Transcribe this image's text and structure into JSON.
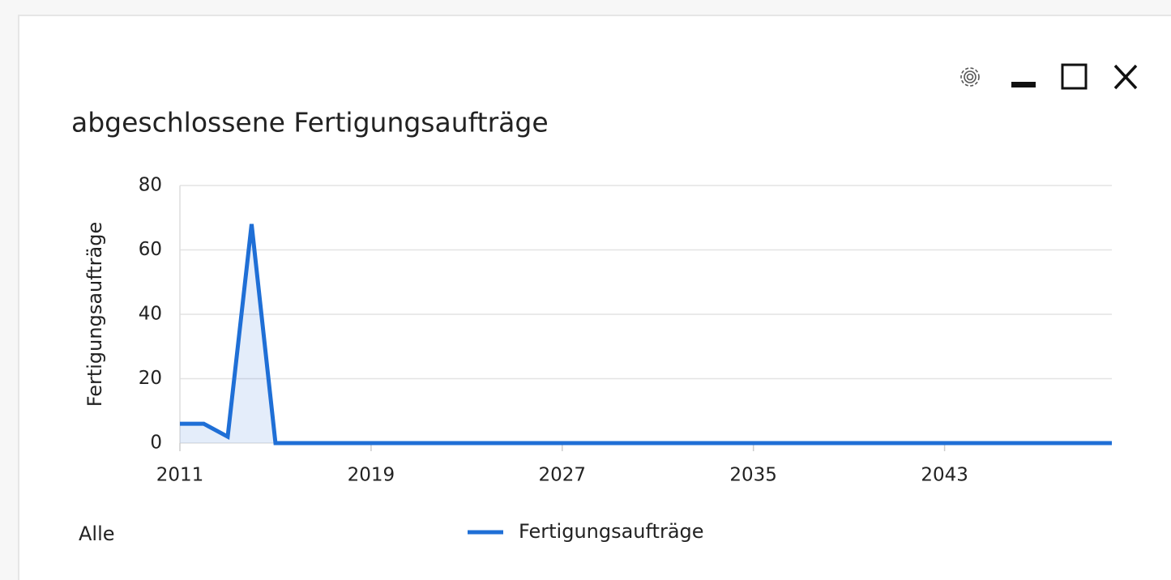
{
  "chart_data": {
    "type": "line",
    "title": "abgeschlossene Fertigungsaufträge",
    "y_label": "Fertigungsaufträge",
    "x": [
      2011,
      2012,
      2013,
      2014,
      2015,
      2016,
      2017,
      2018,
      2019,
      2020,
      2021,
      2022,
      2023,
      2024,
      2025,
      2026,
      2027,
      2028,
      2029,
      2030,
      2031,
      2032,
      2033,
      2034,
      2035,
      2036,
      2037,
      2038,
      2039,
      2040,
      2041,
      2042,
      2043,
      2044,
      2045,
      2046,
      2047,
      2048,
      2049,
      2050
    ],
    "series": [
      {
        "name": "Fertigungsaufträge",
        "color": "#1f6fd6",
        "values": [
          6,
          6,
          2,
          68,
          0,
          0,
          0,
          0,
          0,
          0,
          0,
          0,
          0,
          0,
          0,
          0,
          0,
          0,
          0,
          0,
          0,
          0,
          0,
          0,
          0,
          0,
          0,
          0,
          0,
          0,
          0,
          0,
          0,
          0,
          0,
          0,
          0,
          0,
          0,
          0
        ]
      }
    ],
    "xlim": [
      2011,
      2050
    ],
    "ylim": [
      0,
      80
    ],
    "xticks": [
      2011,
      2019,
      2027,
      2035,
      2043
    ],
    "yticks": [
      0,
      20,
      40,
      60,
      80
    ],
    "grid": true,
    "fill": true
  },
  "footer": {
    "filter": "Alle"
  }
}
